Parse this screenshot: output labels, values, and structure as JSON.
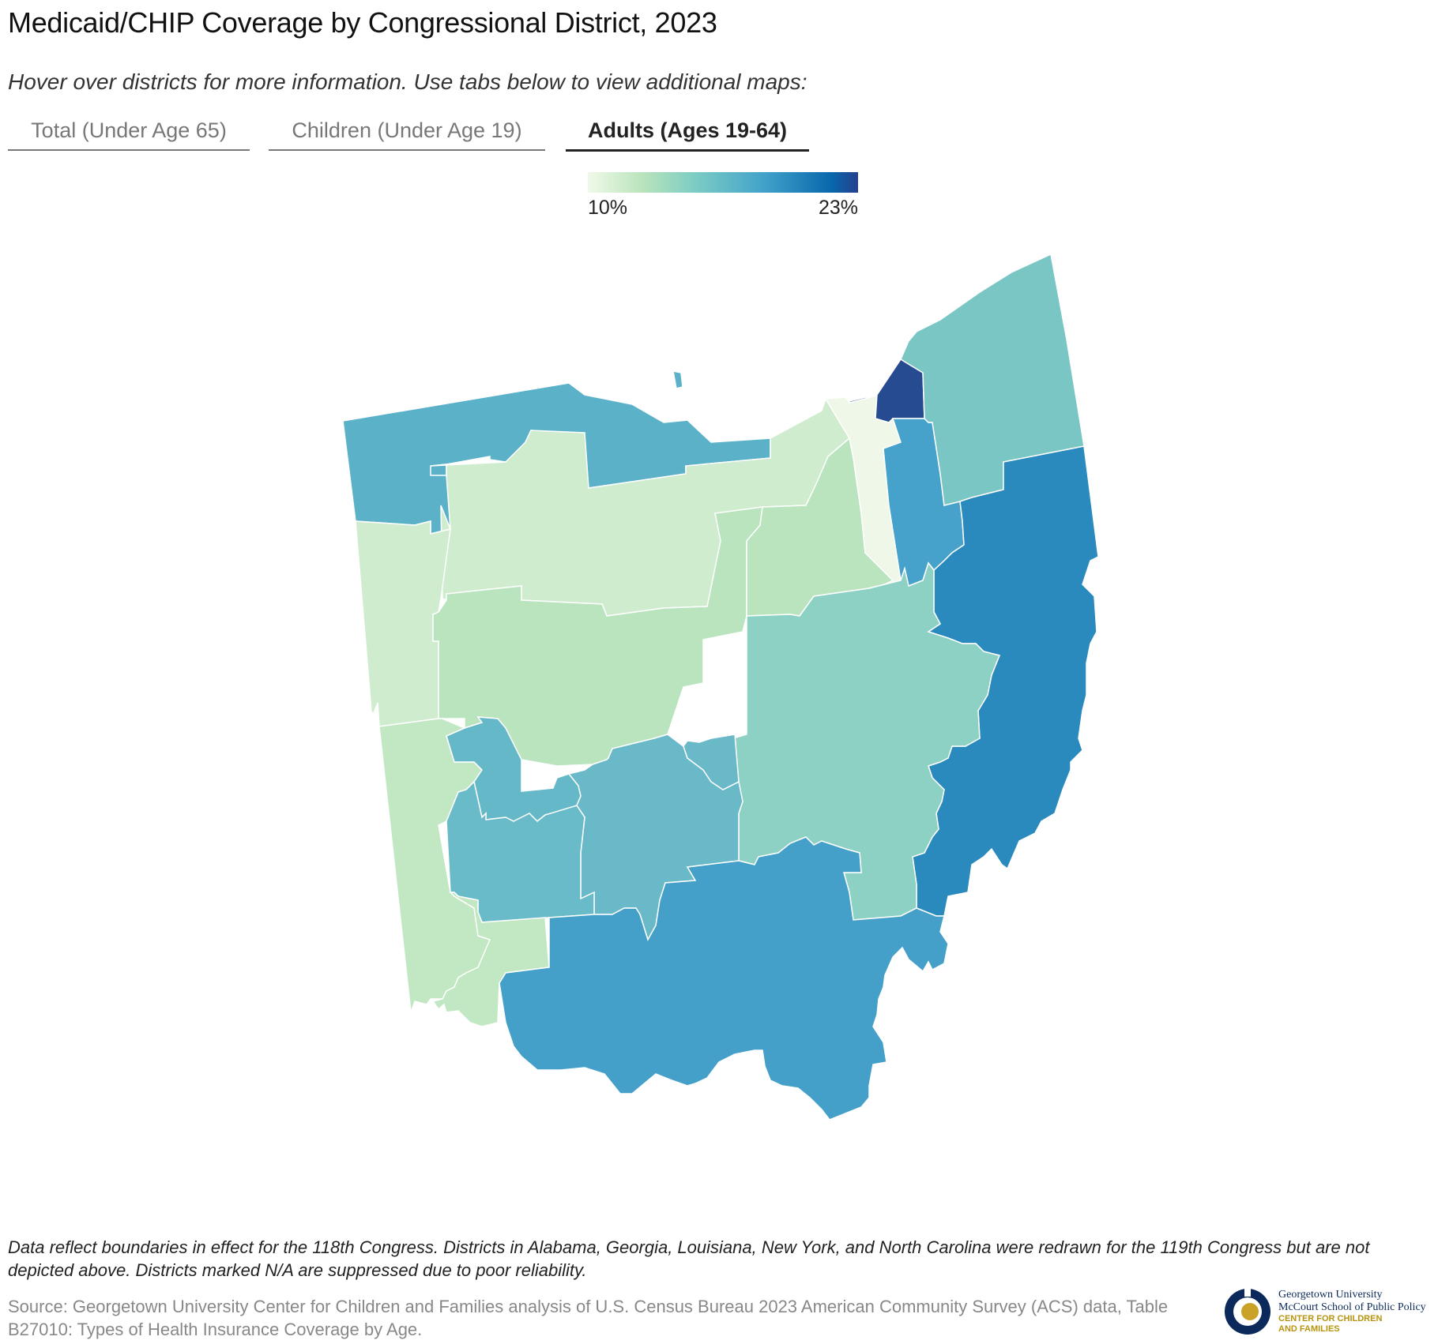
{
  "header": {
    "title": "Medicaid/CHIP Coverage by Congressional District, 2023",
    "subtitle": "Hover over districts for more information. Use tabs below to view additional maps:"
  },
  "tabs": [
    {
      "label": "Total (Under Age 65)",
      "active": false
    },
    {
      "label": "Children (Under Age 19)",
      "active": false
    },
    {
      "label": "Adults (Ages 19-64)",
      "active": true
    }
  ],
  "legend": {
    "min_label": "10%",
    "max_label": "23%",
    "min_value": 10,
    "max_value": 23,
    "colors": [
      "#f0f9e8",
      "#bae4bc",
      "#7bccc4",
      "#43a2ca",
      "#0868ac",
      "#253f8e"
    ]
  },
  "map": {
    "state": "Ohio",
    "districts": [
      {
        "id": "northwest",
        "color": "#5bb2c8"
      },
      {
        "id": "north-central",
        "color": "#cfecce"
      },
      {
        "id": "west-central",
        "color": "#cfecce"
      },
      {
        "id": "central-west",
        "color": "#b9e4bd"
      },
      {
        "id": "central-east",
        "color": "#b9e4bd"
      },
      {
        "id": "suburban-north",
        "color": "#eff8e8"
      },
      {
        "id": "cleveland",
        "color": "#274b91"
      },
      {
        "id": "cleveland-south",
        "color": "#46a2ca"
      },
      {
        "id": "northeast",
        "color": "#7ac6c4"
      },
      {
        "id": "east",
        "color": "#2a89bd"
      },
      {
        "id": "east-central",
        "color": "#8dd1c4"
      },
      {
        "id": "southwest-strip",
        "color": "#c2e8c3"
      },
      {
        "id": "dayton",
        "color": "#64b8c8"
      },
      {
        "id": "columbus-west",
        "color": "#6ab9c8"
      },
      {
        "id": "columbus",
        "color": "#6ab9c8"
      },
      {
        "id": "cincinnati-north",
        "color": "#6abbc9"
      },
      {
        "id": "southwest-corner",
        "color": "#c2e8c3"
      },
      {
        "id": "south",
        "color": "#44a0c8"
      },
      {
        "id": "northwest-island",
        "color": "#5bb2c8"
      }
    ]
  },
  "footer": {
    "note": "Data reflect boundaries in effect for the 118th Congress. Districts in Alabama, Georgia, Louisiana, New York, and North Carolina were redrawn for the 119th Congress but are not depicted above. Districts marked N/A are suppressed due to poor reliability.",
    "source": "Source: Georgetown University Center for Children and Families analysis of U.S. Census Bureau 2023 American Community Survey (ACS) data, Table B27010: Types of Health Insurance Coverage by Age."
  },
  "logo": {
    "line1": "Georgetown University",
    "line2": "McCourt School of Public Policy",
    "line3": "CENTER FOR CHILDREN",
    "line4": "AND FAMILIES"
  }
}
